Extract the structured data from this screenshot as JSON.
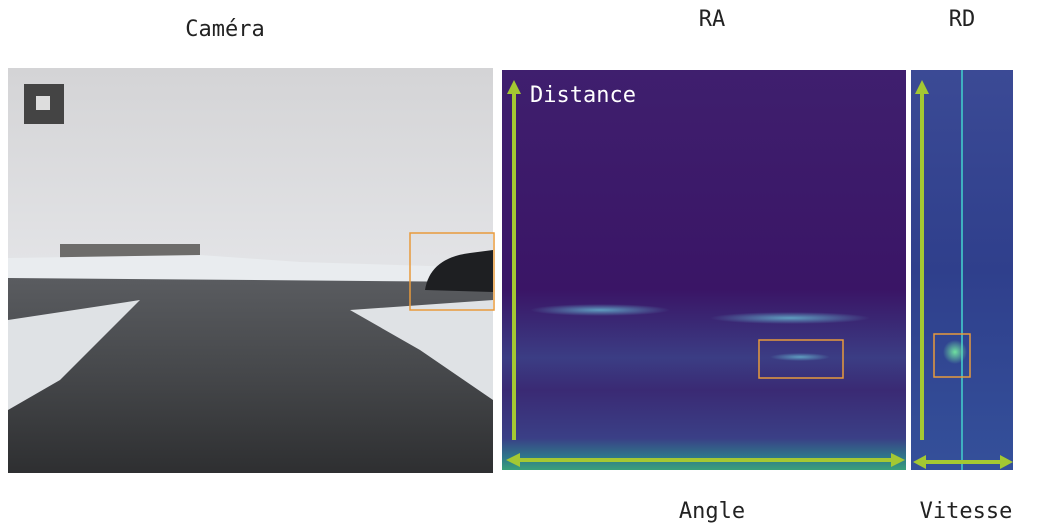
{
  "panels": {
    "camera": {
      "title": "Caméra"
    },
    "ra": {
      "title": "RA",
      "y_axis": "Distance",
      "x_axis": "Angle"
    },
    "rd": {
      "title": "RD",
      "x_axis": "Vitesse"
    }
  }
}
